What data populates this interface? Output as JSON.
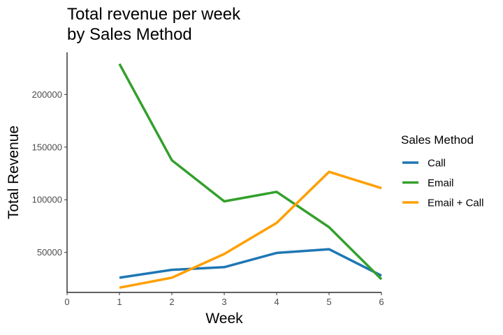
{
  "chart_data": {
    "type": "line",
    "title_lines": [
      "Total revenue per week",
      "by Sales Method"
    ],
    "xlabel": "Week",
    "ylabel": "Total Revenue",
    "x": [
      1,
      2,
      3,
      4,
      5,
      6
    ],
    "xlim": [
      0,
      6
    ],
    "ylim": [
      12000,
      240000
    ],
    "x_ticks": [
      0,
      1,
      2,
      3,
      4,
      5,
      6
    ],
    "y_ticks": [
      50000,
      100000,
      150000,
      200000
    ],
    "grid": false,
    "legend": {
      "title": "Sales Method",
      "position": "right"
    },
    "series": [
      {
        "name": "Call",
        "color": "#1f77b4",
        "values": [
          26000,
          33500,
          36000,
          49500,
          53000,
          28000
        ]
      },
      {
        "name": "Email",
        "color": "#33a02c",
        "values": [
          229000,
          137500,
          98500,
          107500,
          74000,
          24500
        ]
      },
      {
        "name": "Email + Call",
        "color": "#ff9f00",
        "values": [
          16500,
          26000,
          48500,
          78000,
          126500,
          111000
        ]
      }
    ]
  }
}
